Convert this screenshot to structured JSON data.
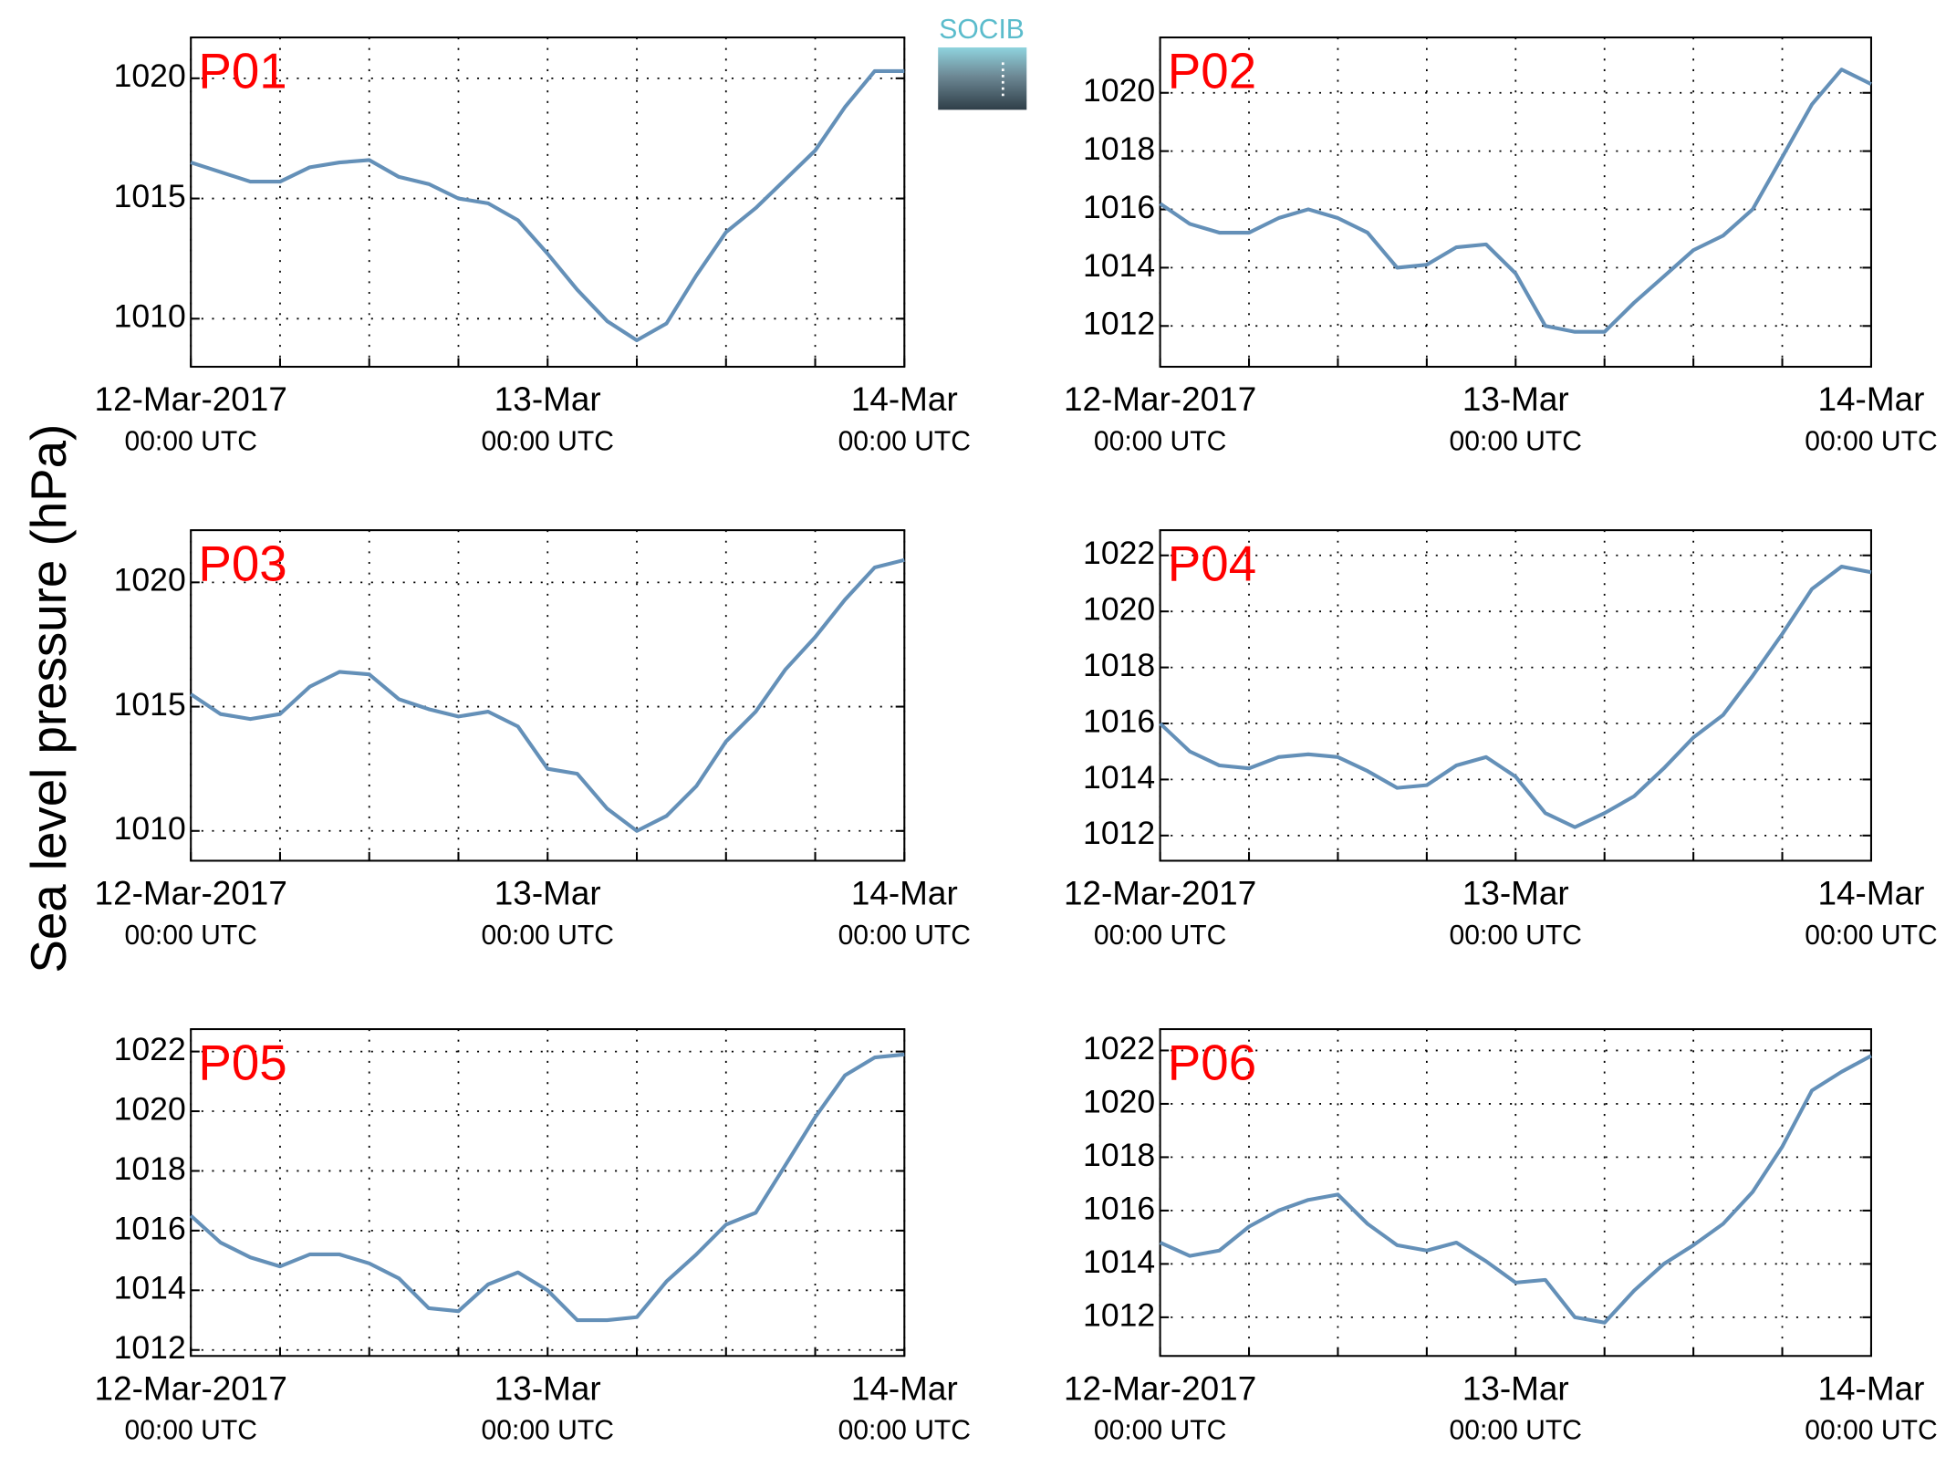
{
  "ylabel": "Sea level pressure (hPa)",
  "logo": "SOCIB",
  "chart_data": [
    {
      "type": "line",
      "title": "P01",
      "color": "#6490b8",
      "x": [
        "2017-03-12T00:00",
        "2017-03-12T02:00",
        "2017-03-12T04:00",
        "2017-03-12T06:00",
        "2017-03-12T08:00",
        "2017-03-12T10:00",
        "2017-03-12T12:00",
        "2017-03-12T14:00",
        "2017-03-12T16:00",
        "2017-03-12T18:00",
        "2017-03-12T20:00",
        "2017-03-12T22:00",
        "2017-03-13T00:00",
        "2017-03-13T02:00",
        "2017-03-13T04:00",
        "2017-03-13T06:00",
        "2017-03-13T08:00",
        "2017-03-13T10:00",
        "2017-03-13T12:00",
        "2017-03-13T14:00",
        "2017-03-13T16:00",
        "2017-03-13T18:00",
        "2017-03-13T20:00",
        "2017-03-13T22:00",
        "2017-03-14T00:00"
      ],
      "values": [
        1016.5,
        1016.1,
        1015.7,
        1015.7,
        1016.3,
        1016.5,
        1016.6,
        1015.9,
        1015.6,
        1015.0,
        1014.8,
        1014.1,
        1012.7,
        1011.2,
        1009.9,
        1009.1,
        1009.8,
        1011.8,
        1013.6,
        1014.6,
        1015.8,
        1017.0,
        1018.8,
        1020.3,
        1020.3
      ],
      "xlim": [
        "2017-03-12T00:00",
        "2017-03-14T00:00"
      ],
      "xticks": [
        {
          "value": "2017-03-12T00:00",
          "label": "12-Mar-2017",
          "sublabel": "00:00 UTC"
        },
        {
          "value": "2017-03-13T00:00",
          "label": "13-Mar",
          "sublabel": "00:00 UTC"
        },
        {
          "value": "2017-03-14T00:00",
          "label": "14-Mar",
          "sublabel": "00:00 UTC"
        }
      ],
      "xminorticks": [
        "2017-03-12T06:00",
        "2017-03-12T12:00",
        "2017-03-12T18:00",
        "2017-03-13T06:00",
        "2017-03-13T12:00",
        "2017-03-13T18:00"
      ],
      "ylim": [
        1008,
        1021.7
      ],
      "yticks": [
        1010,
        1015,
        1020
      ],
      "grid": true
    },
    {
      "type": "line",
      "title": "P02",
      "color": "#6490b8",
      "x": [
        "2017-03-12T00:00",
        "2017-03-12T02:00",
        "2017-03-12T04:00",
        "2017-03-12T06:00",
        "2017-03-12T08:00",
        "2017-03-12T10:00",
        "2017-03-12T12:00",
        "2017-03-12T14:00",
        "2017-03-12T16:00",
        "2017-03-12T18:00",
        "2017-03-12T20:00",
        "2017-03-12T22:00",
        "2017-03-13T00:00",
        "2017-03-13T02:00",
        "2017-03-13T04:00",
        "2017-03-13T06:00",
        "2017-03-13T08:00",
        "2017-03-13T10:00",
        "2017-03-13T12:00",
        "2017-03-13T14:00",
        "2017-03-13T16:00",
        "2017-03-13T18:00",
        "2017-03-13T20:00",
        "2017-03-13T22:00",
        "2017-03-14T00:00"
      ],
      "values": [
        1016.2,
        1015.5,
        1015.2,
        1015.2,
        1015.7,
        1016.0,
        1015.7,
        1015.2,
        1014.0,
        1014.1,
        1014.7,
        1014.8,
        1013.8,
        1012.0,
        1011.8,
        1011.8,
        1012.8,
        1013.7,
        1014.6,
        1015.1,
        1016.0,
        1017.8,
        1019.6,
        1020.8,
        1020.3
      ],
      "xlim": [
        "2017-03-12T00:00",
        "2017-03-14T00:00"
      ],
      "xticks": [
        {
          "value": "2017-03-12T00:00",
          "label": "12-Mar-2017",
          "sublabel": "00:00 UTC"
        },
        {
          "value": "2017-03-13T00:00",
          "label": "13-Mar",
          "sublabel": "00:00 UTC"
        },
        {
          "value": "2017-03-14T00:00",
          "label": "14-Mar",
          "sublabel": "00:00 UTC"
        }
      ],
      "xminorticks": [
        "2017-03-12T06:00",
        "2017-03-12T12:00",
        "2017-03-12T18:00",
        "2017-03-13T06:00",
        "2017-03-13T12:00",
        "2017-03-13T18:00"
      ],
      "ylim": [
        1010.6,
        1021.9
      ],
      "yticks": [
        1012,
        1014,
        1016,
        1018,
        1020
      ],
      "grid": true
    },
    {
      "type": "line",
      "title": "P03",
      "color": "#6490b8",
      "x": [
        "2017-03-12T00:00",
        "2017-03-12T02:00",
        "2017-03-12T04:00",
        "2017-03-12T06:00",
        "2017-03-12T08:00",
        "2017-03-12T10:00",
        "2017-03-12T12:00",
        "2017-03-12T14:00",
        "2017-03-12T16:00",
        "2017-03-12T18:00",
        "2017-03-12T20:00",
        "2017-03-12T22:00",
        "2017-03-13T00:00",
        "2017-03-13T02:00",
        "2017-03-13T04:00",
        "2017-03-13T06:00",
        "2017-03-13T08:00",
        "2017-03-13T10:00",
        "2017-03-13T12:00",
        "2017-03-13T14:00",
        "2017-03-13T16:00",
        "2017-03-13T18:00",
        "2017-03-13T20:00",
        "2017-03-13T22:00",
        "2017-03-14T00:00"
      ],
      "values": [
        1015.5,
        1014.7,
        1014.5,
        1014.7,
        1015.8,
        1016.4,
        1016.3,
        1015.3,
        1014.9,
        1014.6,
        1014.8,
        1014.2,
        1012.5,
        1012.3,
        1010.9,
        1010.0,
        1010.6,
        1011.8,
        1013.6,
        1014.8,
        1016.5,
        1017.8,
        1019.3,
        1020.6,
        1020.9
      ],
      "xlim": [
        "2017-03-12T00:00",
        "2017-03-14T00:00"
      ],
      "xticks": [
        {
          "value": "2017-03-12T00:00",
          "label": "12-Mar-2017",
          "sublabel": "00:00 UTC"
        },
        {
          "value": "2017-03-13T00:00",
          "label": "13-Mar",
          "sublabel": "00:00 UTC"
        },
        {
          "value": "2017-03-14T00:00",
          "label": "14-Mar",
          "sublabel": "00:00 UTC"
        }
      ],
      "xminorticks": [
        "2017-03-12T06:00",
        "2017-03-12T12:00",
        "2017-03-12T18:00",
        "2017-03-13T06:00",
        "2017-03-13T12:00",
        "2017-03-13T18:00"
      ],
      "ylim": [
        1008.8,
        1022.1
      ],
      "yticks": [
        1010,
        1015,
        1020
      ],
      "grid": true
    },
    {
      "type": "line",
      "title": "P04",
      "color": "#6490b8",
      "x": [
        "2017-03-12T00:00",
        "2017-03-12T02:00",
        "2017-03-12T04:00",
        "2017-03-12T06:00",
        "2017-03-12T08:00",
        "2017-03-12T10:00",
        "2017-03-12T12:00",
        "2017-03-12T14:00",
        "2017-03-12T16:00",
        "2017-03-12T18:00",
        "2017-03-12T20:00",
        "2017-03-12T22:00",
        "2017-03-13T00:00",
        "2017-03-13T02:00",
        "2017-03-13T04:00",
        "2017-03-13T06:00",
        "2017-03-13T08:00",
        "2017-03-13T10:00",
        "2017-03-13T12:00",
        "2017-03-13T14:00",
        "2017-03-13T16:00",
        "2017-03-13T18:00",
        "2017-03-13T20:00",
        "2017-03-13T22:00",
        "2017-03-14T00:00"
      ],
      "values": [
        1016.0,
        1015.0,
        1014.5,
        1014.4,
        1014.8,
        1014.9,
        1014.8,
        1014.3,
        1013.7,
        1013.8,
        1014.5,
        1014.8,
        1014.1,
        1012.8,
        1012.3,
        1012.8,
        1013.4,
        1014.4,
        1015.5,
        1016.3,
        1017.7,
        1019.2,
        1020.8,
        1021.6,
        1021.4
      ],
      "xlim": [
        "2017-03-12T00:00",
        "2017-03-14T00:00"
      ],
      "xticks": [
        {
          "value": "2017-03-12T00:00",
          "label": "12-Mar-2017",
          "sublabel": "00:00 UTC"
        },
        {
          "value": "2017-03-13T00:00",
          "label": "13-Mar",
          "sublabel": "00:00 UTC"
        },
        {
          "value": "2017-03-14T00:00",
          "label": "14-Mar",
          "sublabel": "00:00 UTC"
        }
      ],
      "xminorticks": [
        "2017-03-12T06:00",
        "2017-03-12T12:00",
        "2017-03-12T18:00",
        "2017-03-13T06:00",
        "2017-03-13T12:00",
        "2017-03-13T18:00"
      ],
      "ylim": [
        1011.1,
        1022.9
      ],
      "yticks": [
        1012,
        1014,
        1016,
        1018,
        1020,
        1022
      ],
      "grid": true
    },
    {
      "type": "line",
      "title": "P05",
      "color": "#6490b8",
      "x": [
        "2017-03-12T00:00",
        "2017-03-12T02:00",
        "2017-03-12T04:00",
        "2017-03-12T06:00",
        "2017-03-12T08:00",
        "2017-03-12T10:00",
        "2017-03-12T12:00",
        "2017-03-12T14:00",
        "2017-03-12T16:00",
        "2017-03-12T18:00",
        "2017-03-12T20:00",
        "2017-03-12T22:00",
        "2017-03-13T00:00",
        "2017-03-13T02:00",
        "2017-03-13T04:00",
        "2017-03-13T06:00",
        "2017-03-13T08:00",
        "2017-03-13T10:00",
        "2017-03-13T12:00",
        "2017-03-13T14:00",
        "2017-03-13T16:00",
        "2017-03-13T18:00",
        "2017-03-13T20:00",
        "2017-03-13T22:00",
        "2017-03-14T00:00"
      ],
      "values": [
        1016.5,
        1015.6,
        1015.1,
        1014.8,
        1015.2,
        1015.2,
        1014.9,
        1014.4,
        1013.4,
        1013.3,
        1014.2,
        1014.6,
        1014.0,
        1013.0,
        1013.0,
        1013.1,
        1014.3,
        1015.2,
        1016.2,
        1016.6,
        1018.2,
        1019.8,
        1021.2,
        1021.8,
        1021.9
      ],
      "xlim": [
        "2017-03-12T00:00",
        "2017-03-14T00:00"
      ],
      "xticks": [
        {
          "value": "2017-03-12T00:00",
          "label": "12-Mar-2017",
          "sublabel": "00:00 UTC"
        },
        {
          "value": "2017-03-13T00:00",
          "label": "13-Mar",
          "sublabel": "00:00 UTC"
        },
        {
          "value": "2017-03-14T00:00",
          "label": "14-Mar",
          "sublabel": "00:00 UTC"
        }
      ],
      "xminorticks": [
        "2017-03-12T06:00",
        "2017-03-12T12:00",
        "2017-03-12T18:00",
        "2017-03-13T06:00",
        "2017-03-13T12:00",
        "2017-03-13T18:00"
      ],
      "ylim": [
        1011.8,
        1022.75
      ],
      "yticks": [
        1012,
        1014,
        1016,
        1018,
        1020,
        1022
      ],
      "grid": true
    },
    {
      "type": "line",
      "title": "P06",
      "color": "#6490b8",
      "x": [
        "2017-03-12T00:00",
        "2017-03-12T02:00",
        "2017-03-12T04:00",
        "2017-03-12T06:00",
        "2017-03-12T08:00",
        "2017-03-12T10:00",
        "2017-03-12T12:00",
        "2017-03-12T14:00",
        "2017-03-12T16:00",
        "2017-03-12T18:00",
        "2017-03-12T20:00",
        "2017-03-12T22:00",
        "2017-03-13T00:00",
        "2017-03-13T02:00",
        "2017-03-13T04:00",
        "2017-03-13T06:00",
        "2017-03-13T08:00",
        "2017-03-13T10:00",
        "2017-03-13T12:00",
        "2017-03-13T14:00",
        "2017-03-13T16:00",
        "2017-03-13T18:00",
        "2017-03-13T20:00",
        "2017-03-13T22:00",
        "2017-03-14T00:00"
      ],
      "values": [
        1014.8,
        1014.3,
        1014.5,
        1015.4,
        1016.0,
        1016.4,
        1016.6,
        1015.5,
        1014.7,
        1014.5,
        1014.8,
        1014.1,
        1013.3,
        1013.4,
        1012.0,
        1011.8,
        1013.0,
        1014.0,
        1014.7,
        1015.5,
        1016.7,
        1018.4,
        1020.5,
        1021.2,
        1021.8
      ],
      "xlim": [
        "2017-03-12T00:00",
        "2017-03-14T00:00"
      ],
      "xticks": [
        {
          "value": "2017-03-12T00:00",
          "label": "12-Mar-2017",
          "sublabel": "00:00 UTC"
        },
        {
          "value": "2017-03-13T00:00",
          "label": "13-Mar",
          "sublabel": "00:00 UTC"
        },
        {
          "value": "2017-03-14T00:00",
          "label": "14-Mar",
          "sublabel": "00:00 UTC"
        }
      ],
      "xminorticks": [
        "2017-03-12T06:00",
        "2017-03-12T12:00",
        "2017-03-12T18:00",
        "2017-03-13T06:00",
        "2017-03-13T12:00",
        "2017-03-13T18:00"
      ],
      "ylim": [
        1010.55,
        1022.8
      ],
      "yticks": [
        1012,
        1014,
        1016,
        1018,
        1020,
        1022
      ],
      "grid": true
    }
  ]
}
